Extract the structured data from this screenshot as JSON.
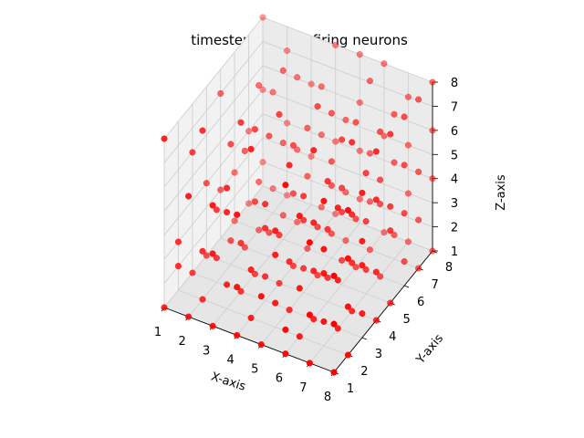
{
  "chart_data": {
    "type": "scatter",
    "projection": "3d",
    "title": "timestep : 1, 193 firing neurons",
    "xlabel": "X-axis",
    "ylabel": "Y-axis",
    "zlabel": "Z-axis",
    "xlim": [
      1,
      8
    ],
    "ylim": [
      1,
      8
    ],
    "zlim": [
      1,
      8
    ],
    "xticks": [
      "1",
      "2",
      "3",
      "4",
      "5",
      "6",
      "7",
      "8"
    ],
    "yticks": [
      "1",
      "2",
      "3",
      "4",
      "5",
      "6",
      "7",
      "8"
    ],
    "zticks": [
      "1",
      "2",
      "3",
      "4",
      "5",
      "6",
      "7",
      "8"
    ],
    "grid": true,
    "marker_color": "#ff0000",
    "series": [
      {
        "points": [
          [
            1,
            1,
            1
          ],
          [
            1,
            3,
            1
          ],
          [
            1,
            4,
            1
          ],
          [
            1,
            6,
            1
          ],
          [
            1,
            7,
            1
          ],
          [
            1,
            8,
            2
          ],
          [
            1,
            2,
            3
          ],
          [
            1,
            5,
            3
          ],
          [
            1,
            7,
            4
          ],
          [
            1,
            8,
            5
          ],
          [
            2,
            1,
            1
          ],
          [
            2,
            2,
            1
          ],
          [
            2,
            3,
            2
          ],
          [
            2,
            5,
            1
          ],
          [
            2,
            6,
            1
          ],
          [
            2,
            8,
            1
          ],
          [
            2,
            2,
            3
          ],
          [
            2,
            4,
            2
          ],
          [
            2,
            6,
            3
          ],
          [
            2,
            7,
            2
          ],
          [
            2,
            1,
            6
          ],
          [
            2,
            8,
            7
          ],
          [
            3,
            1,
            1
          ],
          [
            3,
            2,
            2
          ],
          [
            3,
            3,
            1
          ],
          [
            3,
            4,
            1
          ],
          [
            3,
            6,
            2
          ],
          [
            3,
            7,
            1
          ],
          [
            3,
            8,
            3
          ],
          [
            3,
            1,
            4
          ],
          [
            3,
            3,
            3
          ],
          [
            3,
            5,
            2
          ],
          [
            3,
            7,
            4
          ],
          [
            3,
            2,
            6
          ],
          [
            3,
            4,
            7
          ],
          [
            3,
            6,
            8
          ],
          [
            4,
            1,
            1
          ],
          [
            4,
            2,
            1
          ],
          [
            4,
            3,
            2
          ],
          [
            4,
            4,
            1
          ],
          [
            4,
            5,
            1
          ],
          [
            4,
            6,
            1
          ],
          [
            4,
            7,
            2
          ],
          [
            4,
            8,
            1
          ],
          [
            4,
            1,
            3
          ],
          [
            4,
            2,
            3
          ],
          [
            4,
            4,
            3
          ],
          [
            4,
            6,
            4
          ],
          [
            4,
            8,
            4
          ],
          [
            4,
            3,
            5
          ],
          [
            4,
            5,
            6
          ],
          [
            4,
            7,
            7
          ],
          [
            4,
            2,
            8
          ],
          [
            5,
            1,
            1
          ],
          [
            5,
            2,
            2
          ],
          [
            5,
            3,
            1
          ],
          [
            5,
            4,
            2
          ],
          [
            5,
            5,
            1
          ],
          [
            5,
            6,
            2
          ],
          [
            5,
            7,
            1
          ],
          [
            5,
            8,
            2
          ],
          [
            5,
            1,
            3
          ],
          [
            5,
            3,
            3
          ],
          [
            5,
            5,
            3
          ],
          [
            5,
            7,
            3
          ],
          [
            5,
            2,
            4
          ],
          [
            5,
            4,
            5
          ],
          [
            5,
            6,
            5
          ],
          [
            5,
            8,
            6
          ],
          [
            5,
            3,
            7
          ],
          [
            5,
            5,
            8
          ],
          [
            6,
            1,
            1
          ],
          [
            6,
            2,
            1
          ],
          [
            6,
            3,
            1
          ],
          [
            6,
            4,
            2
          ],
          [
            6,
            5,
            2
          ],
          [
            6,
            6,
            1
          ],
          [
            6,
            7,
            1
          ],
          [
            6,
            8,
            1
          ],
          [
            6,
            1,
            2
          ],
          [
            6,
            2,
            3
          ],
          [
            6,
            3,
            3
          ],
          [
            6,
            4,
            4
          ],
          [
            6,
            5,
            4
          ],
          [
            6,
            6,
            3
          ],
          [
            6,
            7,
            5
          ],
          [
            6,
            8,
            5
          ],
          [
            6,
            2,
            6
          ],
          [
            6,
            4,
            6
          ],
          [
            6,
            6,
            7
          ],
          [
            6,
            8,
            8
          ],
          [
            7,
            1,
            1
          ],
          [
            7,
            2,
            2
          ],
          [
            7,
            3,
            1
          ],
          [
            7,
            4,
            1
          ],
          [
            7,
            5,
            2
          ],
          [
            7,
            6,
            1
          ],
          [
            7,
            7,
            2
          ],
          [
            7,
            8,
            1
          ],
          [
            7,
            1,
            3
          ],
          [
            7,
            3,
            3
          ],
          [
            7,
            4,
            3
          ],
          [
            7,
            5,
            4
          ],
          [
            7,
            6,
            4
          ],
          [
            7,
            7,
            5
          ],
          [
            7,
            8,
            3
          ],
          [
            7,
            2,
            5
          ],
          [
            7,
            3,
            6
          ],
          [
            7,
            5,
            6
          ],
          [
            7,
            6,
            7
          ],
          [
            7,
            8,
            7
          ],
          [
            8,
            1,
            1
          ],
          [
            8,
            2,
            1
          ],
          [
            8,
            3,
            2
          ],
          [
            8,
            4,
            1
          ],
          [
            8,
            5,
            1
          ],
          [
            8,
            6,
            2
          ],
          [
            8,
            7,
            1
          ],
          [
            8,
            8,
            1
          ],
          [
            8,
            1,
            3
          ],
          [
            8,
            2,
            3
          ],
          [
            8,
            3,
            4
          ],
          [
            8,
            4,
            3
          ],
          [
            8,
            5,
            4
          ],
          [
            8,
            6,
            4
          ],
          [
            8,
            7,
            3
          ],
          [
            8,
            8,
            4
          ],
          [
            8,
            2,
            5
          ],
          [
            8,
            4,
            6
          ],
          [
            8,
            6,
            6
          ],
          [
            8,
            8,
            6
          ],
          [
            8,
            3,
            7
          ],
          [
            8,
            5,
            8
          ],
          [
            8,
            7,
            8
          ],
          [
            1,
            2,
            2
          ],
          [
            1,
            4,
            4
          ],
          [
            1,
            6,
            3
          ],
          [
            1,
            3,
            6
          ],
          [
            2,
            3,
            4
          ],
          [
            2,
            5,
            5
          ],
          [
            2,
            7,
            6
          ],
          [
            3,
            2,
            5
          ],
          [
            3,
            4,
            4
          ],
          [
            3,
            6,
            5
          ],
          [
            3,
            8,
            6
          ],
          [
            4,
            3,
            4
          ],
          [
            4,
            5,
            4
          ],
          [
            4,
            7,
            5
          ],
          [
            4,
            6,
            6
          ],
          [
            5,
            2,
            5
          ],
          [
            5,
            4,
            4
          ],
          [
            5,
            6,
            4
          ],
          [
            5,
            8,
            4
          ],
          [
            5,
            7,
            6
          ],
          [
            6,
            3,
            5
          ],
          [
            6,
            5,
            5
          ],
          [
            6,
            7,
            3
          ],
          [
            6,
            3,
            8
          ],
          [
            7,
            2,
            4
          ],
          [
            7,
            4,
            5
          ],
          [
            7,
            6,
            5
          ],
          [
            7,
            8,
            5
          ],
          [
            7,
            4,
            8
          ],
          [
            8,
            1,
            5
          ],
          [
            8,
            3,
            5
          ],
          [
            8,
            5,
            5
          ],
          [
            8,
            7,
            5
          ],
          [
            8,
            6,
            8
          ],
          [
            2,
            4,
            6
          ],
          [
            2,
            6,
            7
          ],
          [
            3,
            5,
            6
          ],
          [
            3,
            7,
            7
          ],
          [
            4,
            4,
            8
          ],
          [
            4,
            8,
            8
          ],
          [
            5,
            6,
            7
          ],
          [
            5,
            8,
            8
          ],
          [
            6,
            5,
            7
          ],
          [
            6,
            7,
            8
          ],
          [
            7,
            7,
            7
          ],
          [
            7,
            2,
            7
          ],
          [
            8,
            4,
            8
          ],
          [
            8,
            2,
            7
          ],
          [
            8,
            8,
            8
          ],
          [
            1,
            8,
            8
          ],
          [
            1,
            1,
            8
          ],
          [
            2,
            2,
            8
          ],
          [
            3,
            3,
            8
          ],
          [
            6,
            1,
            8
          ],
          [
            7,
            1,
            6
          ],
          [
            3,
            1,
            6
          ],
          [
            1,
            5,
            7
          ],
          [
            2,
            8,
            4
          ],
          [
            4,
            1,
            6
          ]
        ]
      }
    ]
  }
}
